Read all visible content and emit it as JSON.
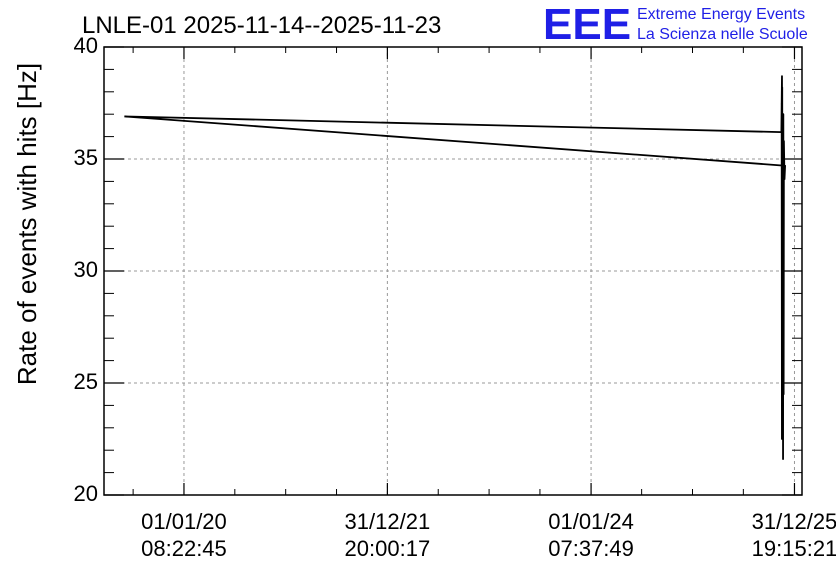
{
  "chart_data": {
    "type": "line",
    "title": "LNLE-01 2025-11-14--2025-11-23",
    "xlabel": "",
    "ylabel": "Rate of events with hits [Hz]",
    "ylim": [
      20,
      40
    ],
    "yticks": [
      20,
      25,
      30,
      35,
      40
    ],
    "xticks": [
      {
        "date": "01/01/20",
        "time": "08:22:45"
      },
      {
        "date": "31/12/21",
        "time": "20:00:17"
      },
      {
        "date": "01/01/24",
        "time": "07:37:49"
      },
      {
        "date": "31/12/25",
        "time": "19:15:21"
      }
    ],
    "grid": true,
    "series": [
      {
        "x": [
          "2019-06-01",
          "2025-11-14",
          "2025-11-14",
          "2025-11-14",
          "2025-11-15",
          "2025-11-16",
          "2025-11-17",
          "2025-11-18",
          "2025-11-19",
          "2025-11-20",
          "2025-11-21",
          "2025-11-22",
          "2025-11-23",
          "2025-11-23",
          "2025-11-23",
          "2019-06-01"
        ],
        "y": [
          36.9,
          36.2,
          38.7,
          24.0,
          37.5,
          22.5,
          38.2,
          23.0,
          36.5,
          21.6,
          37.0,
          24.5,
          35.8,
          34.1,
          34.7,
          36.9
        ]
      }
    ]
  },
  "logo": {
    "mark": "EEE",
    "line1": "Extreme Energy Events",
    "line2": "La Scienza nelle Scuole"
  }
}
